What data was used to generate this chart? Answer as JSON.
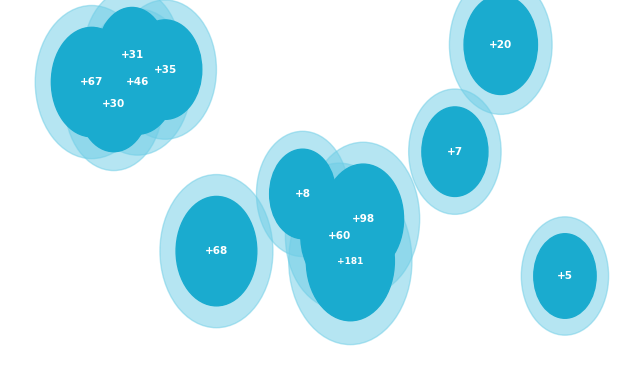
{
  "background_color": "#ffffff",
  "ocean_color": "#ddeef6",
  "map_face_color": "#e8eaed",
  "map_edge_color": "#ffffff",
  "map_linewidth": 0.5,
  "border_color": "#cccccc",
  "bubbles": [
    {
      "label": "+67",
      "lon": -120,
      "lat": 50,
      "r": 22,
      "inner_color": "#1aabcf",
      "outer_color": "#6dcde6"
    },
    {
      "label": "+31",
      "lon": -98,
      "lat": 61,
      "r": 19,
      "inner_color": "#1aabcf",
      "outer_color": "#6dcde6"
    },
    {
      "label": "+35",
      "lon": -80,
      "lat": 55,
      "r": 20,
      "inner_color": "#1aabcf",
      "outer_color": "#6dcde6"
    },
    {
      "label": "+46",
      "lon": -95,
      "lat": 50,
      "r": 21,
      "inner_color": "#1aabcf",
      "outer_color": "#6dcde6"
    },
    {
      "label": "+30",
      "lon": -108,
      "lat": 41,
      "r": 19,
      "inner_color": "#1aabcf",
      "outer_color": "#6dcde6"
    },
    {
      "label": "+20",
      "lon": 103,
      "lat": 65,
      "r": 20,
      "inner_color": "#1aabcf",
      "outer_color": "#6dcde6"
    },
    {
      "label": "+7",
      "lon": 78,
      "lat": 22,
      "r": 18,
      "inner_color": "#1aabcf",
      "outer_color": "#6dcde6"
    },
    {
      "label": "+8",
      "lon": -5,
      "lat": 5,
      "r": 18,
      "inner_color": "#1aabcf",
      "outer_color": "#6dcde6"
    },
    {
      "label": "+98",
      "lon": 28,
      "lat": -5,
      "r": 22,
      "inner_color": "#1aabcf",
      "outer_color": "#6dcde6"
    },
    {
      "label": "+60",
      "lon": 15,
      "lat": -12,
      "r": 21,
      "inner_color": "#1aabcf",
      "outer_color": "#6dcde6"
    },
    {
      "label": "+181",
      "lon": 21,
      "lat": -22,
      "r": 24,
      "inner_color": "#1aabcf",
      "outer_color": "#6dcde6"
    },
    {
      "label": "+68",
      "lon": -52,
      "lat": -18,
      "r": 22,
      "inner_color": "#1aabcf",
      "outer_color": "#6dcde6"
    },
    {
      "label": "+5",
      "lon": 138,
      "lat": -28,
      "r": 17,
      "inner_color": "#1aabcf",
      "outer_color": "#6dcde6"
    }
  ],
  "small_dots": [
    {
      "lon": -75,
      "lat": 58
    },
    {
      "lon": -47,
      "lat": -23
    },
    {
      "lon": -38,
      "lat": -35
    },
    {
      "lon": 85,
      "lat": 42
    },
    {
      "lon": 130,
      "lat": -23
    },
    {
      "lon": -15,
      "lat": 14
    }
  ],
  "dot_color": "#5bb8d4",
  "xlim": [
    -170,
    180
  ],
  "ylim": [
    -65,
    83
  ]
}
